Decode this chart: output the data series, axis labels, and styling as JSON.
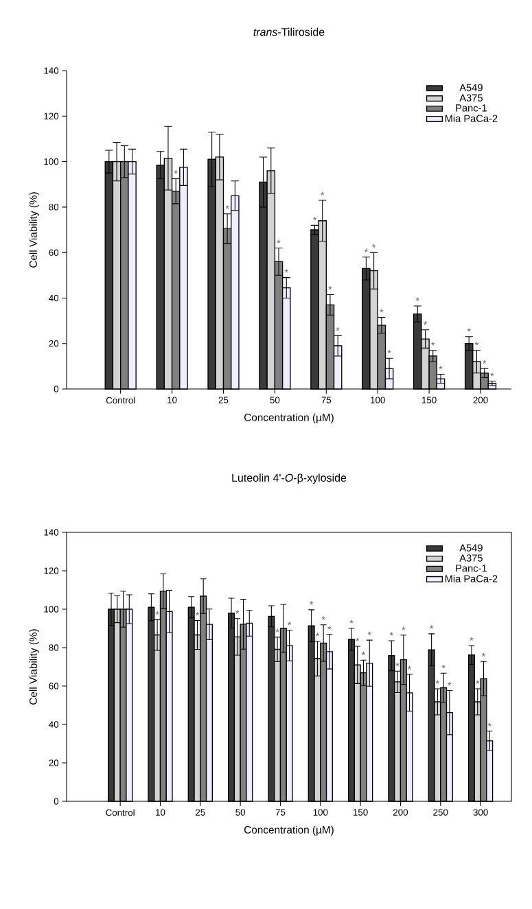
{
  "chart_data": [
    {
      "type": "bar",
      "title": "*trans*-Tiliroside",
      "xlabel": "Concentration (µM)",
      "ylabel": "Cell Viability (%)",
      "categories": [
        "Control",
        "10",
        "25",
        "50",
        "75",
        "100",
        "150",
        "200"
      ],
      "series": [
        {
          "name": "A549",
          "color": "#3a3a3a",
          "values": [
            100,
            98.5,
            101,
            91,
            70,
            53,
            33,
            20
          ],
          "errors": [
            5,
            6,
            12,
            11,
            2,
            5,
            3.5,
            3
          ],
          "value_labels": [
            null,
            null,
            null,
            null,
            "*",
            "*",
            "*",
            "*"
          ]
        },
        {
          "name": "A375",
          "color": "#d3d3d3",
          "values": [
            100,
            101.5,
            102,
            96,
            74,
            52,
            22,
            12
          ],
          "errors": [
            8.5,
            14,
            10,
            10,
            9,
            8,
            4,
            5
          ],
          "value_labels": [
            null,
            null,
            null,
            null,
            "*",
            "*",
            "*",
            "*"
          ]
        },
        {
          "name": "Panc-1",
          "color": "#808080",
          "values": [
            100,
            87,
            70.5,
            56,
            37,
            28,
            14.5,
            7
          ],
          "errors": [
            7,
            5.5,
            6.5,
            6,
            4.5,
            3.5,
            2.5,
            2
          ],
          "value_labels": [
            null,
            "*",
            "*",
            "*",
            "*",
            "*",
            "*",
            "*"
          ]
        },
        {
          "name": "Mia PaCa-2",
          "color": "#eeeeff",
          "values": [
            100,
            97.5,
            85,
            44.5,
            19,
            9,
            4.5,
            2.5
          ],
          "errors": [
            5.5,
            8,
            6.5,
            4.5,
            4.5,
            4.5,
            2,
            1
          ],
          "value_labels": [
            null,
            null,
            null,
            "*",
            "*",
            "*",
            "*",
            "*"
          ]
        }
      ],
      "ylim": [
        0,
        140
      ],
      "yticks": [
        0,
        20,
        40,
        60,
        80,
        100,
        120,
        140
      ],
      "legend": "top right"
    },
    {
      "type": "bar",
      "title": "Luteolin 4'-*O*-β-xyloside",
      "xlabel": "Concentration (µM)",
      "ylabel": "Cell Viability (%)",
      "categories": [
        "Control",
        "10",
        "25",
        "50",
        "75",
        "100",
        "150",
        "200",
        "250",
        "300"
      ],
      "series": [
        {
          "name": "A549",
          "color": "#3a3a3a",
          "values": [
            100,
            101,
            101,
            98,
            96.3,
            91.4,
            84.3,
            75.8,
            78.9,
            76.2
          ],
          "errors": [
            8.4,
            7,
            5.5,
            7.7,
            5.5,
            8.3,
            5.8,
            7.8,
            8.3,
            4.9
          ],
          "value_labels": [
            null,
            null,
            null,
            null,
            null,
            "*",
            "*",
            "*",
            "*",
            "*"
          ]
        },
        {
          "name": "A375",
          "color": "#d3d3d3",
          "values": [
            100,
            86.6,
            86.6,
            85.6,
            79.1,
            74.3,
            71,
            62.2,
            51.8,
            51.8
          ],
          "errors": [
            7,
            8,
            7.5,
            9.5,
            6.4,
            9,
            9.7,
            5.6,
            6.8,
            6.8
          ],
          "value_labels": [
            null,
            "*",
            "*",
            "*",
            "*",
            "*",
            "*",
            "*",
            "*",
            "*"
          ]
        },
        {
          "name": "Panc-1",
          "color": "#808080",
          "values": [
            100,
            109.4,
            106.8,
            92.2,
            90,
            82.4,
            66.9,
            73.7,
            59.1,
            63.9
          ],
          "errors": [
            9.4,
            9,
            9,
            13,
            12.5,
            9.5,
            6.6,
            12.8,
            7.6,
            8.9
          ],
          "value_labels": [
            null,
            null,
            null,
            null,
            null,
            "*",
            "*",
            "*",
            "*",
            "*"
          ]
        },
        {
          "name": "Mia PaCa-2",
          "color": "#eeeeff",
          "values": [
            100,
            98.8,
            92.1,
            92.7,
            81.1,
            77.9,
            71.9,
            56.5,
            46.2,
            31.5
          ],
          "errors": [
            7.5,
            11,
            8,
            6.7,
            8,
            9,
            12,
            9.6,
            11.5,
            5
          ],
          "value_labels": [
            null,
            null,
            null,
            null,
            "*",
            "*",
            "*",
            "*",
            "*",
            "*"
          ]
        }
      ],
      "ylim": [
        0,
        140
      ],
      "yticks": [
        0,
        20,
        40,
        60,
        80,
        100,
        120,
        140
      ],
      "legend": "top right"
    }
  ]
}
